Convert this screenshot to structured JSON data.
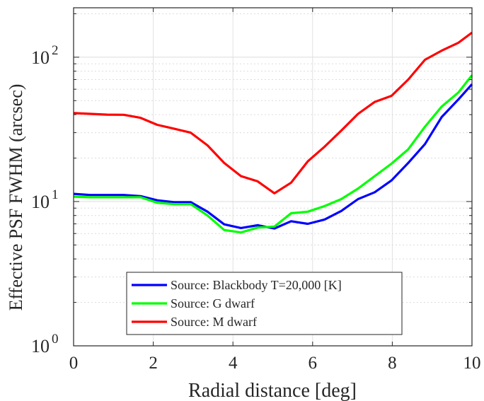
{
  "chart_data": {
    "type": "line",
    "xlabel": "Radial distance [deg]",
    "ylabel": "Effective PSF FWHM (arcsec)",
    "xlim": [
      0,
      10
    ],
    "ylim": [
      1,
      220
    ],
    "yscale": "log",
    "grid": true,
    "legend_position": "lower-center",
    "x_ticks": [
      "0",
      "2",
      "4",
      "6",
      "8",
      "10"
    ],
    "y_ticks": [
      {
        "base": "10",
        "exp": "0",
        "value": 1
      },
      {
        "base": "10",
        "exp": "1",
        "value": 10
      },
      {
        "base": "10",
        "exp": "2",
        "value": 100
      }
    ],
    "series": [
      {
        "name": "Source: Blackbody T=20,000 [K]",
        "color": "#0000ff",
        "x": [
          0,
          0.42,
          0.84,
          1.26,
          1.68,
          2.1,
          2.52,
          2.94,
          3.36,
          3.78,
          4.2,
          4.62,
          5.04,
          5.46,
          5.88,
          6.3,
          6.72,
          7.14,
          7.56,
          7.98,
          8.4,
          8.82,
          9.24,
          9.66,
          10
        ],
        "y": [
          11.3,
          11.1,
          11.1,
          11.1,
          10.9,
          10.2,
          9.9,
          9.9,
          8.5,
          6.95,
          6.55,
          6.85,
          6.5,
          7.3,
          7.0,
          7.5,
          8.6,
          10.4,
          11.6,
          14.0,
          18.5,
          25.0,
          38.5,
          51.0,
          65.0
        ]
      },
      {
        "name": "Source: G dwarf",
        "color": "#00ff00",
        "x": [
          0,
          0.42,
          0.84,
          1.26,
          1.68,
          2.1,
          2.52,
          2.94,
          3.36,
          3.78,
          4.2,
          4.62,
          5.04,
          5.46,
          5.88,
          6.3,
          6.72,
          7.14,
          7.56,
          7.98,
          8.4,
          8.82,
          9.24,
          9.66,
          10
        ],
        "y": [
          10.8,
          10.7,
          10.7,
          10.7,
          10.7,
          9.8,
          9.6,
          9.6,
          8.0,
          6.35,
          6.1,
          6.6,
          6.7,
          8.3,
          8.5,
          9.3,
          10.4,
          12.3,
          15.0,
          18.3,
          23.0,
          33.0,
          45.5,
          57.0,
          75.0
        ]
      },
      {
        "name": "Source: M dwarf",
        "color": "#ff0000",
        "x": [
          0,
          0.42,
          0.84,
          1.26,
          1.68,
          2.1,
          2.52,
          2.94,
          3.36,
          3.78,
          4.2,
          4.62,
          5.04,
          5.46,
          5.88,
          6.3,
          6.72,
          7.14,
          7.56,
          7.98,
          8.4,
          8.82,
          9.24,
          9.66,
          10
        ],
        "y": [
          41.0,
          40.5,
          40.0,
          39.9,
          38.0,
          34.0,
          32.0,
          30.0,
          24.5,
          18.5,
          15.0,
          13.8,
          11.4,
          13.5,
          19.0,
          24.0,
          31.0,
          40.5,
          49.0,
          54.0,
          70.0,
          96.0,
          111.0,
          126.0,
          148.0
        ]
      }
    ]
  }
}
